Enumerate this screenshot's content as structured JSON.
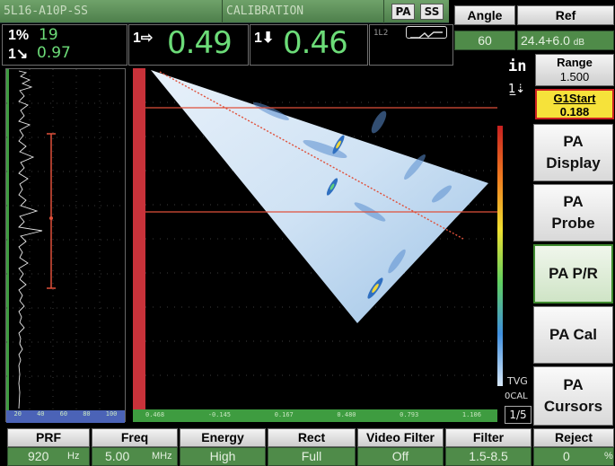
{
  "topbar": {
    "probe_name": "5L16-A10P-SS",
    "mode": "CALIBRATION",
    "pa_label": "PA",
    "ss_label": "SS",
    "focal_label": "1L2"
  },
  "readings": {
    "r1_label": "1%",
    "r1_value": "19",
    "r1b_value": "0.97",
    "r2_label": "1⇨",
    "r2_value": "0.49",
    "r3_label": "1⬇",
    "r3_value": "0.46"
  },
  "params": {
    "angle_label": "Angle",
    "angle_value": "60",
    "ref_label": "Ref",
    "ref_value": "24.4+6.0",
    "ref_unit": "dB",
    "range_label": "Range",
    "range_value": "1.500",
    "g1start_label": "G1Start",
    "g1start_value": "0.188",
    "units": "in"
  },
  "menu": [
    {
      "line1": "PA",
      "line2": "Display"
    },
    {
      "line1": "PA",
      "line2": "Probe"
    },
    {
      "line1": "PA P/R",
      "line2": ""
    },
    {
      "line1": "PA Cal",
      "line2": ""
    },
    {
      "line1": "PA",
      "line2": "Cursors"
    }
  ],
  "side_labels": {
    "tvg": "TVG",
    "cal": "0CAL",
    "page": "1/5"
  },
  "bottom": [
    {
      "label": "PRF",
      "value": "920",
      "unit": "Hz"
    },
    {
      "label": "Freq",
      "value": "5.00",
      "unit": "MHz"
    },
    {
      "label": "Energy",
      "value": "High",
      "unit": ""
    },
    {
      "label": "Rect",
      "value": "Full",
      "unit": ""
    },
    {
      "label": "Video Filter",
      "value": "Off",
      "unit": ""
    },
    {
      "label": "Filter",
      "value": "1.5-8.5",
      "unit": ""
    },
    {
      "label": "Reject",
      "value": "0",
      "unit": "%"
    }
  ],
  "ascan_axis": [
    "20",
    "40",
    "60",
    "80",
    "100"
  ],
  "sscan_axis": [
    "0.468",
    "-0.145",
    "0.167",
    "0.480",
    "0.793",
    "1.106"
  ],
  "colors": {
    "screen_green": "#4f8b49",
    "reading_green": "#6cdc78",
    "gate_red": "#e0503a",
    "g1start_yellow": "#f6e23a"
  }
}
